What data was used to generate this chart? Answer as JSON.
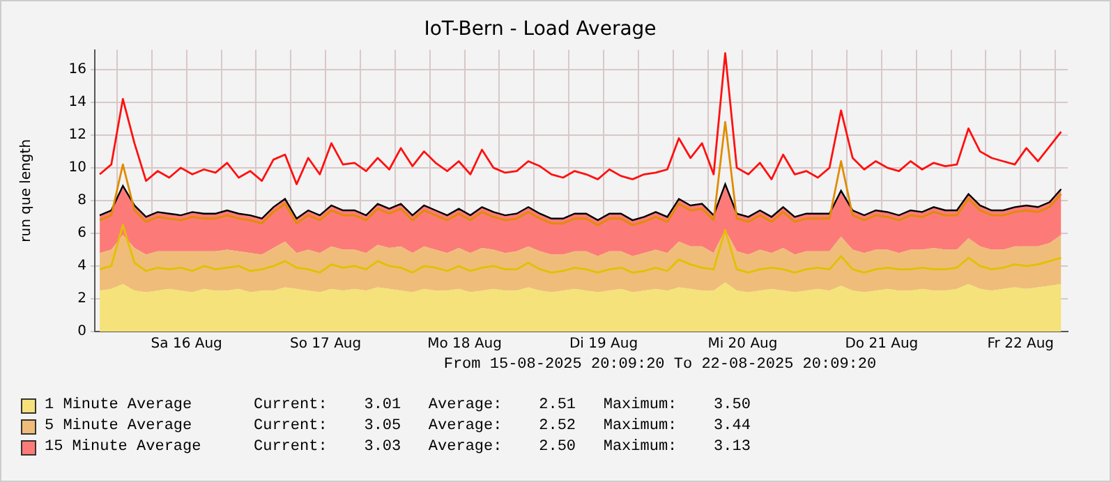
{
  "chart_data": {
    "type": "area",
    "title": "IoT-Bern - Load Average",
    "ylabel": "run que length",
    "stacked": true,
    "grid": true,
    "legend": "bottom",
    "annotations": [
      "From 15-08-2025 20:09:20 To 22-08-2025 20:09:20",
      "Current:    3.01   Average:    2.51   Maximum:    3.50",
      "Current:    3.05   Average:    2.52   Maximum:    3.44",
      "Current:    3.03   Average:    2.50   Maximum:    3.13"
    ],
    "xlim": [
      "2025-08-15T20:09",
      "2025-08-22T20:09"
    ],
    "xticks": [
      {
        "value": "2025-08-16T00:00",
        "label": null
      },
      {
        "value": "2025-08-16T06:00",
        "label": null
      },
      {
        "value": "2025-08-16T12:00",
        "label": "Sa 16 Aug"
      },
      {
        "value": "2025-08-16T18:00",
        "label": null
      },
      {
        "value": "2025-08-17T00:00",
        "label": null
      },
      {
        "value": "2025-08-17T06:00",
        "label": null
      },
      {
        "value": "2025-08-17T12:00",
        "label": "So 17 Aug"
      },
      {
        "value": "2025-08-17T18:00",
        "label": null
      },
      {
        "value": "2025-08-18T00:00",
        "label": null
      },
      {
        "value": "2025-08-18T06:00",
        "label": null
      },
      {
        "value": "2025-08-18T12:00",
        "label": "Mo 18 Aug"
      },
      {
        "value": "2025-08-18T18:00",
        "label": null
      },
      {
        "value": "2025-08-19T00:00",
        "label": null
      },
      {
        "value": "2025-08-19T06:00",
        "label": null
      },
      {
        "value": "2025-08-19T12:00",
        "label": "Di 19 Aug"
      },
      {
        "value": "2025-08-19T18:00",
        "label": null
      },
      {
        "value": "2025-08-20T00:00",
        "label": null
      },
      {
        "value": "2025-08-20T06:00",
        "label": null
      },
      {
        "value": "2025-08-20T12:00",
        "label": "Mi 20 Aug"
      },
      {
        "value": "2025-08-20T18:00",
        "label": null
      },
      {
        "value": "2025-08-21T00:00",
        "label": null
      },
      {
        "value": "2025-08-21T06:00",
        "label": null
      },
      {
        "value": "2025-08-21T12:00",
        "label": "Do 21 Aug"
      },
      {
        "value": "2025-08-21T18:00",
        "label": null
      },
      {
        "value": "2025-08-22T00:00",
        "label": null
      },
      {
        "value": "2025-08-22T06:00",
        "label": null
      },
      {
        "value": "2025-08-22T12:00",
        "label": "Fr 22 Aug"
      },
      {
        "value": "2025-08-22T18:00",
        "label": null
      }
    ],
    "ylim": [
      0,
      17.2
    ],
    "yticks": [
      0,
      2,
      4,
      6,
      8,
      10,
      12,
      14,
      16
    ],
    "x": [
      "2025-08-15T21:00",
      "2025-08-15T23:00",
      "2025-08-16T01:00",
      "2025-08-16T03:00",
      "2025-08-16T05:00",
      "2025-08-16T07:00",
      "2025-08-16T09:00",
      "2025-08-16T11:00",
      "2025-08-16T13:00",
      "2025-08-16T15:00",
      "2025-08-16T17:00",
      "2025-08-16T19:00",
      "2025-08-16T21:00",
      "2025-08-16T23:00",
      "2025-08-17T01:00",
      "2025-08-17T03:00",
      "2025-08-17T05:00",
      "2025-08-17T07:00",
      "2025-08-17T09:00",
      "2025-08-17T11:00",
      "2025-08-17T13:00",
      "2025-08-17T15:00",
      "2025-08-17T17:00",
      "2025-08-17T19:00",
      "2025-08-17T21:00",
      "2025-08-17T23:00",
      "2025-08-18T01:00",
      "2025-08-18T03:00",
      "2025-08-18T05:00",
      "2025-08-18T07:00",
      "2025-08-18T09:00",
      "2025-08-18T11:00",
      "2025-08-18T13:00",
      "2025-08-18T15:00",
      "2025-08-18T17:00",
      "2025-08-18T19:00",
      "2025-08-18T21:00",
      "2025-08-18T23:00",
      "2025-08-19T01:00",
      "2025-08-19T03:00",
      "2025-08-19T05:00",
      "2025-08-19T07:00",
      "2025-08-19T09:00",
      "2025-08-19T11:00",
      "2025-08-19T13:00",
      "2025-08-19T15:00",
      "2025-08-19T17:00",
      "2025-08-19T19:00",
      "2025-08-19T21:00",
      "2025-08-19T23:00",
      "2025-08-20T01:00",
      "2025-08-20T03:00",
      "2025-08-20T05:00",
      "2025-08-20T07:00",
      "2025-08-20T09:00",
      "2025-08-20T11:00",
      "2025-08-20T13:00",
      "2025-08-20T15:00",
      "2025-08-20T17:00",
      "2025-08-20T19:00",
      "2025-08-20T21:00",
      "2025-08-20T23:00",
      "2025-08-21T01:00",
      "2025-08-21T03:00",
      "2025-08-21T05:00",
      "2025-08-21T07:00",
      "2025-08-21T09:00",
      "2025-08-21T11:00",
      "2025-08-21T13:00",
      "2025-08-21T15:00",
      "2025-08-21T17:00",
      "2025-08-21T19:00",
      "2025-08-21T21:00",
      "2025-08-21T23:00",
      "2025-08-22T01:00",
      "2025-08-22T03:00",
      "2025-08-22T05:00",
      "2025-08-22T07:00",
      "2025-08-22T09:00",
      "2025-08-22T11:00",
      "2025-08-22T13:00",
      "2025-08-22T15:00",
      "2025-08-22T17:00",
      "2025-08-22T19:00"
    ],
    "series": [
      {
        "type": "line",
        "color": "#e08c00",
        "values": [
          6.8,
          7.1,
          10.2,
          7.4,
          6.7,
          7.0,
          6.9,
          6.8,
          7.0,
          6.9,
          6.9,
          7.1,
          6.9,
          6.8,
          6.6,
          7.3,
          7.8,
          6.6,
          7.1,
          6.8,
          7.4,
          7.1,
          7.1,
          6.8,
          7.5,
          7.2,
          7.5,
          6.8,
          7.4,
          7.1,
          6.8,
          7.2,
          6.8,
          7.3,
          7.0,
          6.8,
          6.9,
          7.3,
          6.9,
          6.6,
          6.6,
          6.9,
          6.9,
          6.5,
          6.9,
          6.9,
          6.5,
          6.7,
          7.0,
          6.7,
          7.8,
          7.4,
          7.5,
          6.8,
          12.8,
          6.9,
          6.7,
          7.1,
          6.7,
          7.3,
          6.7,
          6.9,
          6.9,
          6.9,
          10.4,
          7.1,
          6.8,
          7.1,
          7.0,
          6.8,
          7.1,
          7.0,
          7.3,
          7.1,
          7.1,
          8.1,
          7.4,
          7.1,
          7.1,
          7.3,
          7.4,
          7.3,
          7.6,
          8.4
        ]
      },
      {
        "type": "line",
        "color": "#e3c000",
        "values": [
          3.8,
          4.0,
          6.5,
          4.2,
          3.7,
          3.9,
          3.8,
          3.9,
          3.7,
          4.0,
          3.8,
          3.9,
          4.0,
          3.7,
          3.8,
          4.0,
          4.3,
          3.9,
          3.8,
          3.6,
          4.1,
          3.9,
          4.0,
          3.8,
          4.3,
          4.0,
          3.9,
          3.6,
          4.0,
          3.9,
          3.7,
          4.0,
          3.7,
          3.9,
          4.0,
          3.8,
          3.8,
          4.2,
          3.8,
          3.6,
          3.7,
          3.9,
          3.8,
          3.6,
          3.8,
          3.9,
          3.6,
          3.7,
          3.9,
          3.7,
          4.4,
          4.1,
          3.9,
          3.8,
          6.2,
          3.8,
          3.6,
          3.8,
          3.9,
          3.8,
          3.6,
          3.8,
          3.9,
          3.8,
          4.6,
          3.8,
          3.6,
          3.8,
          3.9,
          3.8,
          3.8,
          3.9,
          3.8,
          3.8,
          3.9,
          4.5,
          4.0,
          3.8,
          3.9,
          4.1,
          4.0,
          4.1,
          4.3,
          4.5
        ]
      },
      {
        "type": "line",
        "color": "#ff1010",
        "values": [
          9.6,
          10.2,
          14.2,
          11.5,
          9.2,
          9.8,
          9.4,
          10.0,
          9.6,
          9.9,
          9.7,
          10.3,
          9.4,
          9.8,
          9.2,
          10.5,
          10.8,
          9.0,
          10.6,
          9.6,
          11.5,
          10.2,
          10.3,
          9.8,
          10.6,
          9.9,
          11.2,
          10.1,
          11.0,
          10.3,
          9.8,
          10.4,
          9.6,
          11.1,
          10.0,
          9.7,
          9.8,
          10.4,
          10.1,
          9.6,
          9.4,
          9.8,
          9.6,
          9.3,
          9.9,
          9.5,
          9.3,
          9.6,
          9.7,
          9.9,
          11.8,
          10.6,
          11.5,
          9.6,
          17.0,
          10.0,
          9.6,
          10.3,
          9.3,
          10.8,
          9.6,
          9.8,
          9.4,
          10.0,
          13.5,
          10.6,
          9.9,
          10.4,
          10.0,
          9.8,
          10.4,
          9.9,
          10.3,
          10.1,
          10.2,
          12.4,
          11.0,
          10.6,
          10.4,
          10.2,
          11.2,
          10.4,
          11.3,
          12.2
        ]
      },
      {
        "name": "1 Minute Average",
        "type": "area",
        "color": "#f5e27a",
        "values": [
          2.5,
          2.6,
          2.9,
          2.5,
          2.4,
          2.5,
          2.6,
          2.5,
          2.4,
          2.6,
          2.5,
          2.5,
          2.6,
          2.4,
          2.5,
          2.5,
          2.7,
          2.6,
          2.5,
          2.4,
          2.6,
          2.5,
          2.6,
          2.5,
          2.7,
          2.6,
          2.5,
          2.4,
          2.6,
          2.5,
          2.5,
          2.6,
          2.4,
          2.5,
          2.6,
          2.5,
          2.5,
          2.7,
          2.5,
          2.4,
          2.5,
          2.6,
          2.5,
          2.4,
          2.5,
          2.6,
          2.4,
          2.5,
          2.6,
          2.5,
          2.7,
          2.6,
          2.5,
          2.5,
          3.0,
          2.5,
          2.4,
          2.5,
          2.6,
          2.5,
          2.4,
          2.5,
          2.6,
          2.5,
          2.8,
          2.5,
          2.4,
          2.5,
          2.6,
          2.5,
          2.5,
          2.6,
          2.5,
          2.5,
          2.6,
          2.9,
          2.6,
          2.5,
          2.6,
          2.7,
          2.6,
          2.7,
          2.8,
          2.9
        ]
      },
      {
        "name": "5 Minute Average",
        "type": "area",
        "color": "#efbd79",
        "values": [
          2.3,
          2.4,
          3.0,
          2.6,
          2.3,
          2.4,
          2.3,
          2.4,
          2.5,
          2.3,
          2.4,
          2.5,
          2.3,
          2.4,
          2.2,
          2.6,
          2.8,
          2.2,
          2.5,
          2.4,
          2.6,
          2.5,
          2.4,
          2.3,
          2.6,
          2.5,
          2.7,
          2.4,
          2.6,
          2.5,
          2.3,
          2.5,
          2.4,
          2.6,
          2.4,
          2.3,
          2.4,
          2.5,
          2.4,
          2.3,
          2.2,
          2.3,
          2.4,
          2.2,
          2.4,
          2.3,
          2.2,
          2.3,
          2.4,
          2.3,
          2.8,
          2.6,
          2.7,
          2.3,
          3.2,
          2.4,
          2.3,
          2.5,
          2.2,
          2.6,
          2.3,
          2.4,
          2.3,
          2.4,
          3.0,
          2.5,
          2.4,
          2.5,
          2.4,
          2.3,
          2.5,
          2.4,
          2.6,
          2.5,
          2.4,
          2.8,
          2.6,
          2.5,
          2.4,
          2.5,
          2.6,
          2.5,
          2.6,
          3.0
        ]
      },
      {
        "name": "15 Minute Average",
        "type": "area",
        "color": "#fc7b78",
        "values": [
          2.3,
          2.4,
          3.0,
          2.6,
          2.3,
          2.4,
          2.3,
          2.2,
          2.4,
          2.3,
          2.3,
          2.4,
          2.3,
          2.3,
          2.2,
          2.5,
          2.6,
          2.1,
          2.4,
          2.3,
          2.5,
          2.4,
          2.4,
          2.3,
          2.5,
          2.4,
          2.6,
          2.3,
          2.5,
          2.4,
          2.3,
          2.4,
          2.3,
          2.5,
          2.3,
          2.3,
          2.3,
          2.4,
          2.3,
          2.2,
          2.2,
          2.3,
          2.3,
          2.2,
          2.3,
          2.3,
          2.2,
          2.2,
          2.3,
          2.2,
          2.6,
          2.5,
          2.6,
          2.3,
          2.8,
          2.3,
          2.3,
          2.4,
          2.2,
          2.5,
          2.3,
          2.3,
          2.3,
          2.3,
          2.8,
          2.4,
          2.3,
          2.4,
          2.3,
          2.3,
          2.4,
          2.3,
          2.5,
          2.4,
          2.4,
          2.7,
          2.5,
          2.4,
          2.4,
          2.4,
          2.5,
          2.4,
          2.5,
          2.8
        ]
      }
    ]
  }
}
